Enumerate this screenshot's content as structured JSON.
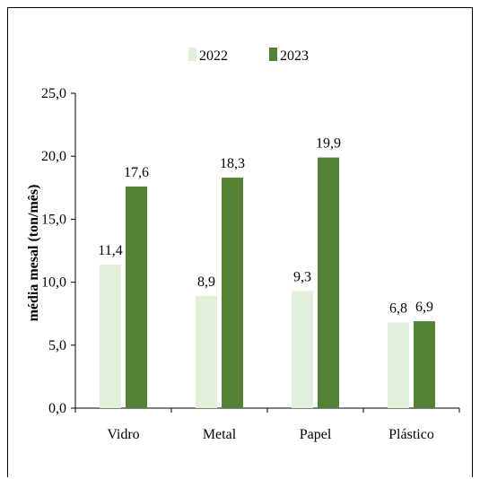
{
  "chart_data": {
    "type": "bar",
    "categories": [
      "Vidro",
      "Metal",
      "Papel",
      "Plástico"
    ],
    "series": [
      {
        "name": "2022",
        "values": [
          11.4,
          8.9,
          9.3,
          6.8
        ],
        "labels": [
          "11,4",
          "8,9",
          "9,3",
          "6,8"
        ],
        "color": "#e2efda"
      },
      {
        "name": "2023",
        "values": [
          17.6,
          18.3,
          19.9,
          6.9
        ],
        "labels": [
          "17,6",
          "18,3",
          "19,9",
          "6,9"
        ],
        "color": "#538135"
      }
    ],
    "y_ticks": [
      0,
      5,
      10,
      15,
      20,
      25
    ],
    "y_tick_labels": [
      "0,0",
      "5,0",
      "10,0",
      "15,0",
      "20,0",
      "25,0"
    ],
    "ylim": [
      0,
      25
    ],
    "ylabel": "média mesal (ton/mês)",
    "xlabel": "",
    "title": "",
    "legend_position": "top-center",
    "grid": false
  }
}
